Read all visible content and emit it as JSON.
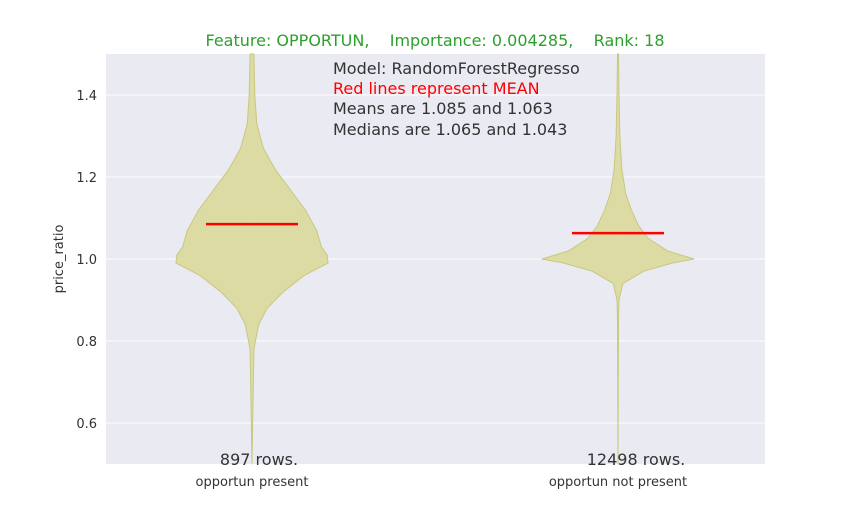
{
  "chart_data": {
    "type": "violin",
    "title": "Feature: OPPORTUN,    Importance: 0.004285,    Rank: 18",
    "title_color": "#2ca02c",
    "xlabel": "",
    "ylabel": "price_ratio",
    "ylim": [
      0.5,
      1.5
    ],
    "yticks": [
      0.6,
      0.8,
      1.0,
      1.2,
      1.4
    ],
    "ytick_labels": [
      "0.6",
      "0.8",
      "1.0",
      "1.2",
      "1.4"
    ],
    "grid": true,
    "categories": [
      "opportun present",
      "opportun not present"
    ],
    "annotations": {
      "model": "Model: RandomForestRegresso",
      "mean_note": "Red lines represent MEAN",
      "means_text": "Means are 1.085 and 1.063",
      "medians_text": "Medians are 1.065 and 1.043"
    },
    "violins": [
      {
        "category": "opportun present",
        "rows_label": "897 rows.",
        "mean": 1.085,
        "median": 1.065,
        "range": [
          0.5,
          1.5
        ],
        "profile": [
          [
            0.5,
            0.0
          ],
          [
            0.78,
            0.02
          ],
          [
            0.84,
            0.07
          ],
          [
            0.88,
            0.16
          ],
          [
            0.92,
            0.33
          ],
          [
            0.96,
            0.55
          ],
          [
            0.99,
            0.8
          ],
          [
            1.01,
            0.79
          ],
          [
            1.03,
            0.73
          ],
          [
            1.07,
            0.68
          ],
          [
            1.12,
            0.56
          ],
          [
            1.17,
            0.4
          ],
          [
            1.22,
            0.24
          ],
          [
            1.27,
            0.12
          ],
          [
            1.33,
            0.05
          ],
          [
            1.4,
            0.03
          ],
          [
            1.5,
            0.02
          ]
        ]
      },
      {
        "category": "opportun not present",
        "rows_label": "12498 rows.",
        "mean": 1.063,
        "median": 1.043,
        "range": [
          0.5,
          1.5
        ],
        "profile": [
          [
            0.5,
            0.0
          ],
          [
            0.85,
            0.005
          ],
          [
            0.9,
            0.01
          ],
          [
            0.94,
            0.05
          ],
          [
            0.97,
            0.27
          ],
          [
            0.99,
            0.57
          ],
          [
            1.0,
            0.8
          ],
          [
            1.02,
            0.52
          ],
          [
            1.05,
            0.32
          ],
          [
            1.08,
            0.22
          ],
          [
            1.12,
            0.14
          ],
          [
            1.16,
            0.08
          ],
          [
            1.22,
            0.04
          ],
          [
            1.3,
            0.02
          ],
          [
            1.4,
            0.01
          ],
          [
            1.5,
            0.005
          ]
        ]
      }
    ],
    "colors": {
      "violin_fill": "#d9d99a",
      "violin_edge": "#c8c880",
      "mean_line": "#ff0000",
      "plot_bg": "#eaeaf2",
      "grid": "#ffffff",
      "text": "#333333",
      "mean_note": "#ff0000"
    }
  }
}
